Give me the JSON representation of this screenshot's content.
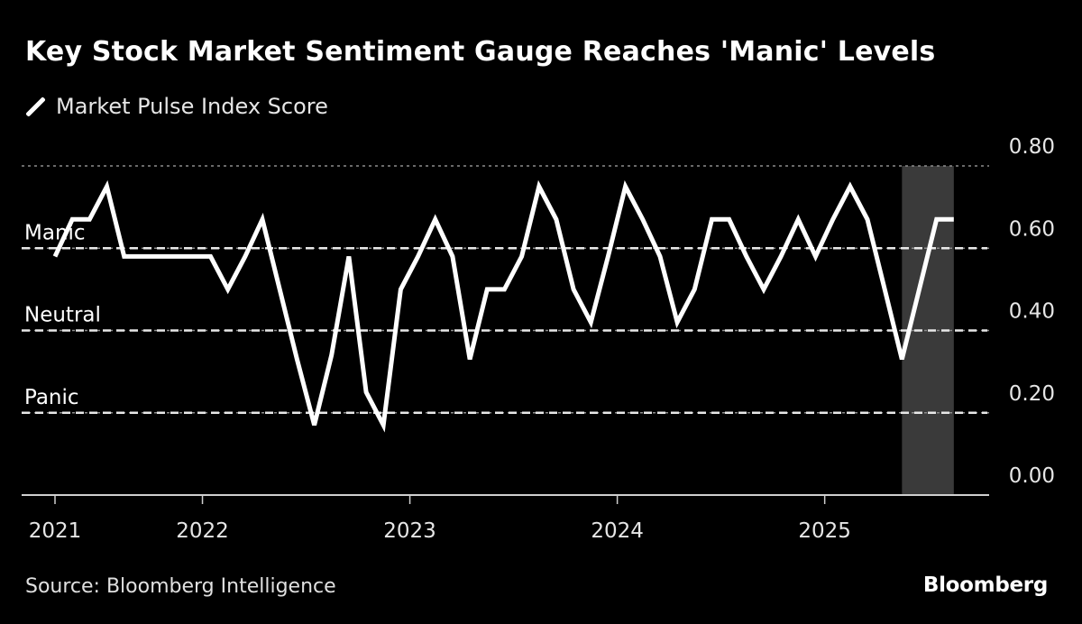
{
  "header": {
    "title": "Key Stock Market Sentiment Gauge Reaches 'Manic' Levels",
    "legend_label": "Market Pulse Index Score"
  },
  "footer": {
    "source": "Source: Bloomberg Intelligence",
    "brand": "Bloomberg"
  },
  "colors": {
    "background": "#000000",
    "line": "#ffffff",
    "highlight_band": "#3a3a3a",
    "grid": "#8c8c8c",
    "reference": "#e8e8e8"
  },
  "chart_data": {
    "type": "line",
    "title": "Key Stock Market Sentiment Gauge Reaches 'Manic' Levels",
    "xlabel": "",
    "ylabel": "",
    "ylim": [
      0,
      0.8
    ],
    "y_ticks": [
      "0.00",
      "0.20",
      "0.40",
      "0.60",
      "0.80"
    ],
    "y_tick_values": [
      0,
      0.2,
      0.4,
      0.6,
      0.8
    ],
    "x_ticks": [
      "2021",
      "2022",
      "2023",
      "2024",
      "2025"
    ],
    "x_tick_index": [
      0,
      9,
      21,
      33,
      45
    ],
    "grid": true,
    "legend": "top-left",
    "reference_lines": [
      {
        "label": "Manic",
        "value": 0.6
      },
      {
        "label": "Neutral",
        "value": 0.4
      },
      {
        "label": "Panic",
        "value": 0.2
      }
    ],
    "highlight_range_index": [
      49,
      52
    ],
    "x": [
      "2021-04",
      "2021-05",
      "2021-06",
      "2021-07",
      "2021-08",
      "2021-09",
      "2021-10",
      "2021-11",
      "2021-12",
      "2022-01",
      "2022-02",
      "2022-03",
      "2022-04",
      "2022-05",
      "2022-06",
      "2022-07",
      "2022-08",
      "2022-09",
      "2022-10",
      "2022-11",
      "2022-12",
      "2023-01",
      "2023-02",
      "2023-03",
      "2023-04",
      "2023-05",
      "2023-06",
      "2023-07",
      "2023-08",
      "2023-09",
      "2023-10",
      "2023-11",
      "2023-12",
      "2024-01",
      "2024-02",
      "2024-03",
      "2024-04",
      "2024-05",
      "2024-06",
      "2024-07",
      "2024-08",
      "2024-09",
      "2024-10",
      "2024-11",
      "2024-12",
      "2025-01",
      "2025-02",
      "2025-03",
      "2025-04",
      "2025-05",
      "2025-06",
      "2025-07",
      "2025-08"
    ],
    "series": [
      {
        "name": "Market Pulse Index Score",
        "values": [
          0.58,
          0.67,
          0.67,
          0.75,
          0.58,
          0.58,
          0.58,
          0.58,
          0.58,
          0.58,
          0.5,
          0.58,
          0.67,
          0.5,
          0.33,
          0.17,
          0.34,
          0.58,
          0.25,
          0.17,
          0.5,
          0.58,
          0.67,
          0.58,
          0.33,
          0.5,
          0.5,
          0.58,
          0.75,
          0.67,
          0.5,
          0.42,
          0.58,
          0.75,
          0.67,
          0.58,
          0.42,
          0.5,
          0.67,
          0.67,
          0.58,
          0.5,
          0.58,
          0.67,
          0.58,
          0.67,
          0.75,
          0.67,
          0.5,
          0.33,
          0.5,
          0.67,
          0.67
        ]
      }
    ]
  }
}
